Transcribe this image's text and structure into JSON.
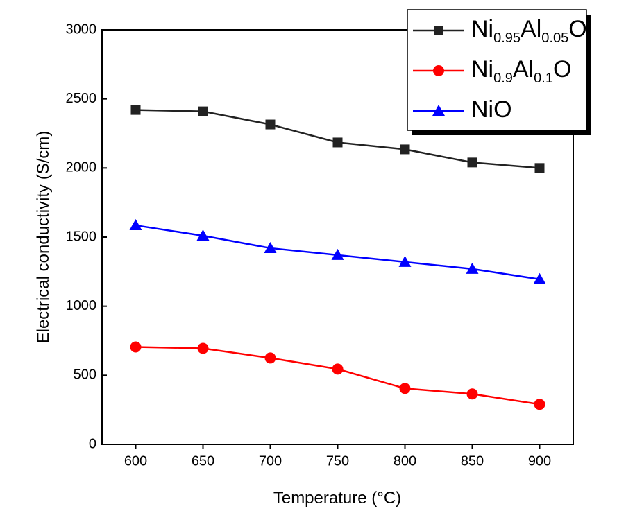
{
  "chart_data": {
    "type": "line",
    "x_label": "Temperature (°C)",
    "y_label": "Electrical conductivity (S/cm)",
    "x": [
      600,
      650,
      700,
      750,
      800,
      850,
      900
    ],
    "series": [
      {
        "name": "Ni0.95Al0.05O",
        "color": "#222222",
        "marker": "square",
        "values": [
          2420,
          2410,
          2315,
          2185,
          2135,
          2040,
          2000
        ]
      },
      {
        "name": "Ni0.9Al0.1O",
        "color": "#ff0000",
        "marker": "circle",
        "values": [
          705,
          695,
          625,
          545,
          405,
          365,
          290
        ]
      },
      {
        "name": "NiO",
        "color": "#0000ff",
        "marker": "triangle",
        "values": [
          1585,
          1510,
          1420,
          1370,
          1320,
          1270,
          1195
        ]
      }
    ],
    "xlim": [
      575,
      925
    ],
    "xticks": [
      600,
      650,
      700,
      750,
      800,
      850,
      900
    ],
    "ylim": [
      0,
      3000
    ],
    "yticks": [
      0,
      500,
      1000,
      1500,
      2000,
      2500,
      3000
    ],
    "legend": "upper right"
  }
}
